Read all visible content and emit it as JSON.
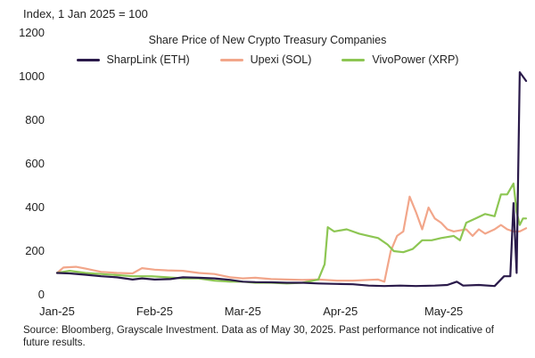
{
  "header": {
    "y_axis_title": "Index, 1 Jan 2025 = 100"
  },
  "footer": {
    "source": "Source: Bloomberg, Grayscale Investment. Data as of May 30, 2025. Past performance not indicative of future results."
  },
  "chart_data": {
    "type": "line",
    "title": "Share Price of New Crypto Treasury Companies",
    "ylabel": "Index, 1 Jan 2025 = 100",
    "xlabel": "",
    "x_ticks": [
      "Jan-25",
      "Feb-25",
      "Mar-25",
      "Apr-25",
      "May-25"
    ],
    "y_ticks": [
      "0",
      "200",
      "400",
      "600",
      "800",
      "1000",
      "1200"
    ],
    "ylim": [
      0,
      1200
    ],
    "xlim": [
      "2025-01-01",
      "2025-05-30"
    ],
    "grid": false,
    "legend_position": "top",
    "series": [
      {
        "name": "SharpLink (ETH)",
        "color": "#2a1a4a",
        "points": [
          [
            "2025-01-01",
            100
          ],
          [
            "2025-01-05",
            98
          ],
          [
            "2025-01-10",
            92
          ],
          [
            "2025-01-15",
            85
          ],
          [
            "2025-01-20",
            80
          ],
          [
            "2025-01-25",
            70
          ],
          [
            "2025-01-28",
            75
          ],
          [
            "2025-02-01",
            70
          ],
          [
            "2025-02-06",
            72
          ],
          [
            "2025-02-10",
            80
          ],
          [
            "2025-02-15",
            78
          ],
          [
            "2025-02-20",
            75
          ],
          [
            "2025-02-25",
            68
          ],
          [
            "2025-03-01",
            60
          ],
          [
            "2025-03-05",
            58
          ],
          [
            "2025-03-10",
            57
          ],
          [
            "2025-03-15",
            55
          ],
          [
            "2025-03-20",
            55
          ],
          [
            "2025-03-25",
            52
          ],
          [
            "2025-03-31",
            50
          ],
          [
            "2025-04-05",
            48
          ],
          [
            "2025-04-10",
            42
          ],
          [
            "2025-04-15",
            40
          ],
          [
            "2025-04-20",
            42
          ],
          [
            "2025-04-25",
            40
          ],
          [
            "2025-05-01",
            42
          ],
          [
            "2025-05-05",
            45
          ],
          [
            "2025-05-08",
            60
          ],
          [
            "2025-05-10",
            42
          ],
          [
            "2025-05-15",
            45
          ],
          [
            "2025-05-20",
            40
          ],
          [
            "2025-05-23",
            85
          ],
          [
            "2025-05-25",
            85
          ],
          [
            "2025-05-26",
            420
          ],
          [
            "2025-05-27",
            100
          ],
          [
            "2025-05-28",
            1020
          ],
          [
            "2025-05-29",
            1000
          ],
          [
            "2025-05-30",
            980
          ]
        ]
      },
      {
        "name": "Upexi (SOL)",
        "color": "#f2a68a",
        "points": [
          [
            "2025-01-01",
            100
          ],
          [
            "2025-01-03",
            125
          ],
          [
            "2025-01-07",
            128
          ],
          [
            "2025-01-10",
            120
          ],
          [
            "2025-01-15",
            105
          ],
          [
            "2025-01-20",
            100
          ],
          [
            "2025-01-25",
            98
          ],
          [
            "2025-01-28",
            122
          ],
          [
            "2025-02-01",
            115
          ],
          [
            "2025-02-05",
            112
          ],
          [
            "2025-02-10",
            110
          ],
          [
            "2025-02-15",
            100
          ],
          [
            "2025-02-20",
            95
          ],
          [
            "2025-02-25",
            80
          ],
          [
            "2025-03-01",
            75
          ],
          [
            "2025-03-05",
            78
          ],
          [
            "2025-03-10",
            72
          ],
          [
            "2025-03-15",
            70
          ],
          [
            "2025-03-20",
            68
          ],
          [
            "2025-03-25",
            70
          ],
          [
            "2025-03-31",
            65
          ],
          [
            "2025-04-05",
            65
          ],
          [
            "2025-04-10",
            68
          ],
          [
            "2025-04-13",
            70
          ],
          [
            "2025-04-15",
            60
          ],
          [
            "2025-04-17",
            200
          ],
          [
            "2025-04-19",
            270
          ],
          [
            "2025-04-21",
            290
          ],
          [
            "2025-04-23",
            450
          ],
          [
            "2025-04-25",
            380
          ],
          [
            "2025-04-27",
            300
          ],
          [
            "2025-04-29",
            400
          ],
          [
            "2025-05-01",
            350
          ],
          [
            "2025-05-03",
            330
          ],
          [
            "2025-05-05",
            300
          ],
          [
            "2025-05-07",
            290
          ],
          [
            "2025-05-09",
            295
          ],
          [
            "2025-05-11",
            300
          ],
          [
            "2025-05-13",
            270
          ],
          [
            "2025-05-15",
            300
          ],
          [
            "2025-05-17",
            280
          ],
          [
            "2025-05-20",
            300
          ],
          [
            "2025-05-22",
            320
          ],
          [
            "2025-05-24",
            300
          ],
          [
            "2025-05-26",
            290
          ],
          [
            "2025-05-28",
            290
          ],
          [
            "2025-05-30",
            305
          ]
        ]
      },
      {
        "name": "VivoPower (XRP)",
        "color": "#8dc653",
        "points": [
          [
            "2025-01-01",
            100
          ],
          [
            "2025-01-05",
            110
          ],
          [
            "2025-01-10",
            100
          ],
          [
            "2025-01-15",
            95
          ],
          [
            "2025-01-20",
            90
          ],
          [
            "2025-01-25",
            85
          ],
          [
            "2025-01-31",
            85
          ],
          [
            "2025-02-05",
            80
          ],
          [
            "2025-02-10",
            75
          ],
          [
            "2025-02-15",
            75
          ],
          [
            "2025-02-20",
            65
          ],
          [
            "2025-02-25",
            60
          ],
          [
            "2025-03-01",
            60
          ],
          [
            "2025-03-05",
            55
          ],
          [
            "2025-03-10",
            55
          ],
          [
            "2025-03-15",
            52
          ],
          [
            "2025-03-20",
            55
          ],
          [
            "2025-03-25",
            70
          ],
          [
            "2025-03-27",
            140
          ],
          [
            "2025-03-28",
            310
          ],
          [
            "2025-03-30",
            290
          ],
          [
            "2025-04-03",
            300
          ],
          [
            "2025-04-07",
            280
          ],
          [
            "2025-04-10",
            270
          ],
          [
            "2025-04-13",
            260
          ],
          [
            "2025-04-16",
            230
          ],
          [
            "2025-04-18",
            200
          ],
          [
            "2025-04-21",
            195
          ],
          [
            "2025-04-24",
            210
          ],
          [
            "2025-04-27",
            250
          ],
          [
            "2025-04-30",
            250
          ],
          [
            "2025-05-03",
            260
          ],
          [
            "2025-05-07",
            270
          ],
          [
            "2025-05-09",
            250
          ],
          [
            "2025-05-11",
            330
          ],
          [
            "2025-05-14",
            350
          ],
          [
            "2025-05-17",
            370
          ],
          [
            "2025-05-20",
            360
          ],
          [
            "2025-05-22",
            460
          ],
          [
            "2025-05-24",
            460
          ],
          [
            "2025-05-26",
            510
          ],
          [
            "2025-05-27",
            380
          ],
          [
            "2025-05-28",
            320
          ],
          [
            "2025-05-29",
            350
          ],
          [
            "2025-05-30",
            350
          ]
        ]
      }
    ]
  }
}
